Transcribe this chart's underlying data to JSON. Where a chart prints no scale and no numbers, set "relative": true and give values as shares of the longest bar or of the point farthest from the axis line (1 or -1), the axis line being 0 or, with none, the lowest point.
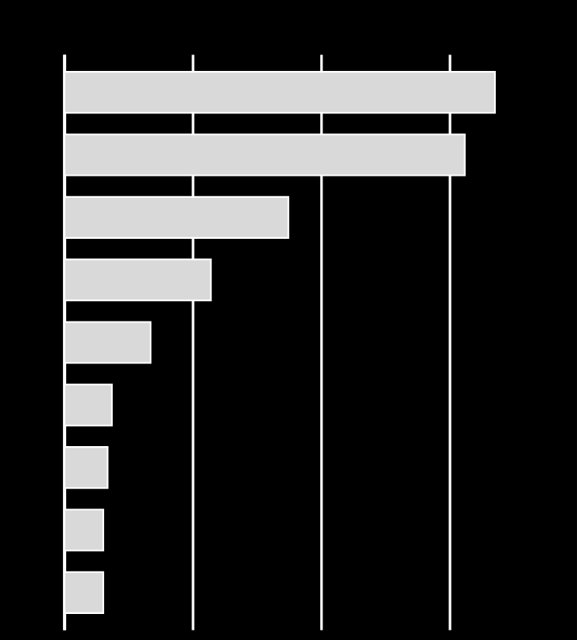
{
  "chart_data": {
    "type": "bar",
    "orientation": "horizontal",
    "relative": true,
    "grid": "x",
    "categories": [
      null,
      null,
      null,
      null,
      null,
      null,
      null,
      null,
      null
    ],
    "values": [
      1,
      0.93,
      0.52,
      0.34,
      0.2,
      0.11,
      0.1,
      0.09,
      0.09
    ],
    "color": "#d9d9d9"
  }
}
